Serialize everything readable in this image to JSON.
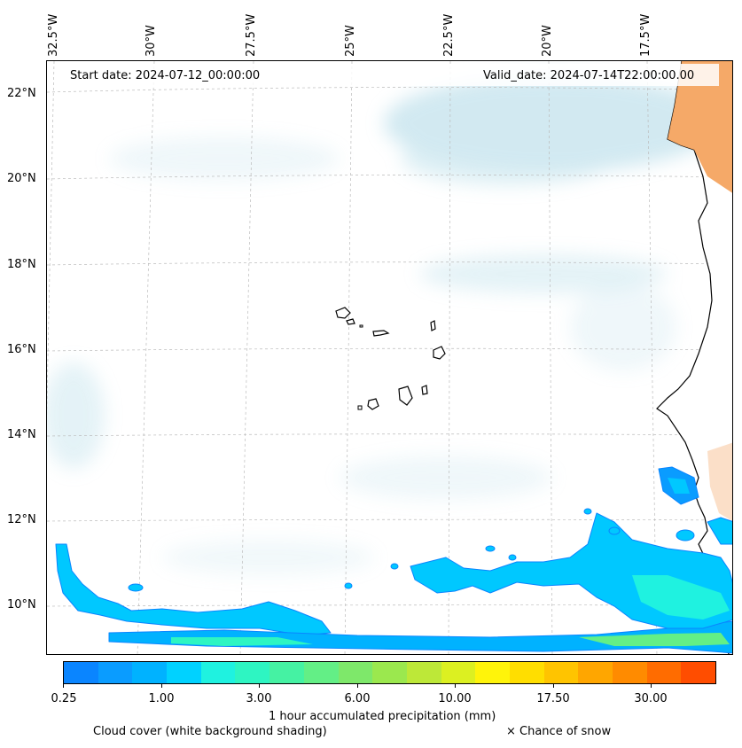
{
  "map": {
    "start_date": "Start date: 2024-07-12_00:00:00",
    "valid_date": "Valid_date: 2024-07-14T22:00:00.00",
    "lon_labels": [
      "32.5°W",
      "30°W",
      "27.5°W",
      "25°W",
      "22.5°W",
      "20°W",
      "17.5°W"
    ],
    "lat_labels": [
      "22°N",
      "20°N",
      "18°N",
      "16°N",
      "14°N",
      "12°N",
      "10°N"
    ],
    "land_color": "#f4a460",
    "cloud_color": "#add8e6"
  },
  "colorbar": {
    "ticks": [
      "0.25",
      "1.00",
      "3.00",
      "6.00",
      "10.00",
      "17.50",
      "30.00"
    ],
    "label": "1 hour accumulated precipitation (mm)",
    "colors": [
      "#0a85ff",
      "#0a9cff",
      "#00b2ff",
      "#00d2ff",
      "#1ff2e0",
      "#2ef5c2",
      "#45f2a3",
      "#63ef86",
      "#7ee86a",
      "#9be84e",
      "#bde838",
      "#dcf021",
      "#fff40a",
      "#ffde00",
      "#ffc400",
      "#ffa600",
      "#ff8b00",
      "#ff6c00",
      "#ff4d00"
    ]
  },
  "captions": {
    "cloud": "Cloud cover (white background shading)",
    "snow": "× Chance of snow"
  }
}
